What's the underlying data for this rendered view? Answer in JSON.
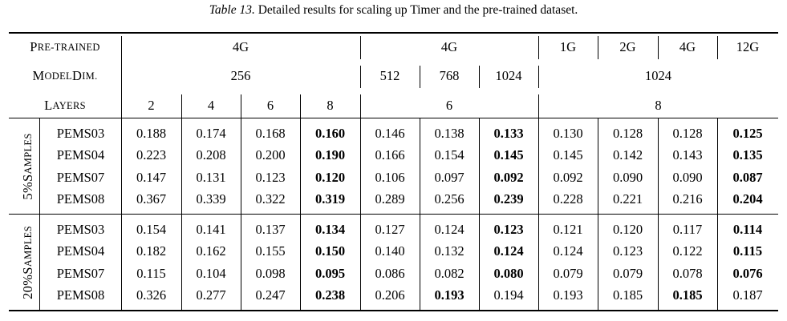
{
  "caption": {
    "label": "Table 13.",
    "text": "Detailed results for scaling up Timer and the pre-trained dataset."
  },
  "table": {
    "header": {
      "pretrained_label_big": "P",
      "pretrained_label_small": "RE-TRAINED",
      "pretrained": [
        "4G",
        "4G",
        "1G",
        "2G",
        "4G",
        "12G"
      ],
      "modeldim_label_big": "M",
      "modeldim_label_small1": "ODEL ",
      "modeldim_label_big2": "D",
      "modeldim_label_small2": "IM.",
      "modeldim": [
        "256",
        "512",
        "768",
        "1024",
        "1024"
      ],
      "layers_label_big": "L",
      "layers_label_small": "AYERS",
      "layers": [
        "2",
        "4",
        "6",
        "8",
        "6",
        "8"
      ]
    },
    "groups": [
      {
        "label": "5% ",
        "label_big": "S",
        "label_small": "AMPLES",
        "rows": [
          {
            "name": "PEMS03",
            "values": [
              "0.188",
              "0.174",
              "0.168",
              "0.160",
              "0.146",
              "0.138",
              "0.133",
              "0.130",
              "0.128",
              "0.128",
              "0.125"
            ],
            "bold": [
              3,
              6,
              10
            ]
          },
          {
            "name": "PEMS04",
            "values": [
              "0.223",
              "0.208",
              "0.200",
              "0.190",
              "0.166",
              "0.154",
              "0.145",
              "0.145",
              "0.142",
              "0.143",
              "0.135"
            ],
            "bold": [
              3,
              6,
              10
            ]
          },
          {
            "name": "PEMS07",
            "values": [
              "0.147",
              "0.131",
              "0.123",
              "0.120",
              "0.106",
              "0.097",
              "0.092",
              "0.092",
              "0.090",
              "0.090",
              "0.087"
            ],
            "bold": [
              3,
              6,
              10
            ]
          },
          {
            "name": "PEMS08",
            "values": [
              "0.367",
              "0.339",
              "0.322",
              "0.319",
              "0.289",
              "0.256",
              "0.239",
              "0.228",
              "0.221",
              "0.216",
              "0.204"
            ],
            "bold": [
              3,
              6,
              10
            ]
          }
        ]
      },
      {
        "label": "20% ",
        "label_big": "S",
        "label_small": "AMPLES",
        "rows": [
          {
            "name": "PEMS03",
            "values": [
              "0.154",
              "0.141",
              "0.137",
              "0.134",
              "0.127",
              "0.124",
              "0.123",
              "0.121",
              "0.120",
              "0.117",
              "0.114"
            ],
            "bold": [
              3,
              6,
              10
            ]
          },
          {
            "name": "PEMS04",
            "values": [
              "0.182",
              "0.162",
              "0.155",
              "0.150",
              "0.140",
              "0.132",
              "0.124",
              "0.124",
              "0.123",
              "0.122",
              "0.115"
            ],
            "bold": [
              3,
              6,
              10
            ]
          },
          {
            "name": "PEMS07",
            "values": [
              "0.115",
              "0.104",
              "0.098",
              "0.095",
              "0.086",
              "0.082",
              "0.080",
              "0.079",
              "0.079",
              "0.078",
              "0.076"
            ],
            "bold": [
              3,
              6,
              10
            ]
          },
          {
            "name": "PEMS08",
            "values": [
              "0.326",
              "0.277",
              "0.247",
              "0.238",
              "0.206",
              "0.193",
              "0.194",
              "0.193",
              "0.185",
              "0.185",
              "0.187"
            ],
            "bold": [
              3,
              5,
              9
            ]
          }
        ]
      }
    ]
  }
}
